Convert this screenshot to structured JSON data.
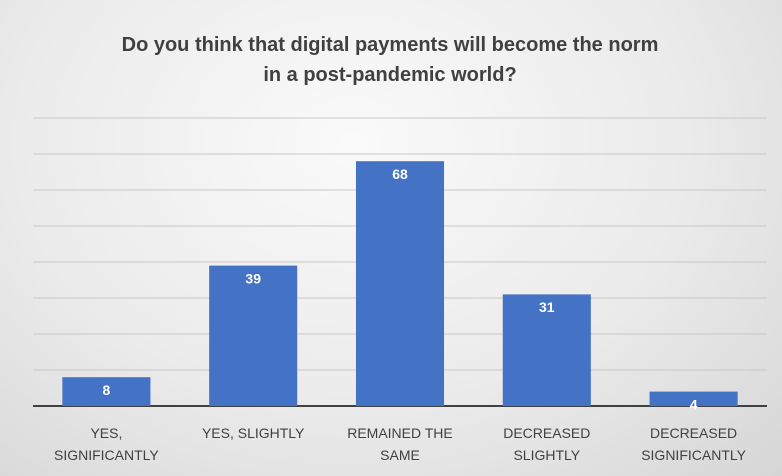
{
  "chart_data": {
    "type": "bar",
    "title": "Do you think that digital payments will become the norm in a post-pandemic world?",
    "categories": [
      "YES, SIGNIFICANTLY",
      "YES, SLIGHTLY",
      "REMAINED THE SAME",
      "DECREASED SLIGHTLY",
      "DECREASED SIGNIFICANTLY"
    ],
    "values": [
      8,
      39,
      68,
      31,
      4
    ],
    "color": "#4472c4",
    "ylim": [
      0,
      80
    ],
    "yticks": [
      0,
      10,
      20,
      30,
      40,
      50,
      60,
      70,
      80
    ],
    "grid": true
  }
}
